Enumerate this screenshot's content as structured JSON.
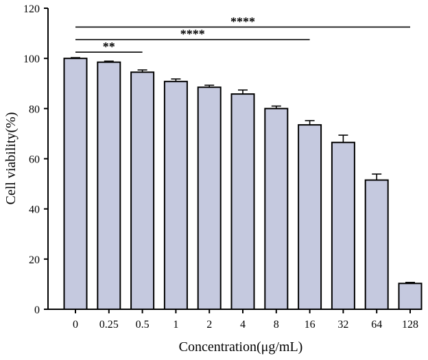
{
  "chart_data": {
    "type": "bar",
    "xlabel": "Concentration(μg/mL)",
    "ylabel": "Cell viability(%)",
    "ylim": [
      0,
      120
    ],
    "yticks": [
      0,
      20,
      40,
      60,
      80,
      100,
      120
    ],
    "categories": [
      "0",
      "0.25",
      "0.5",
      "1",
      "2",
      "4",
      "8",
      "16",
      "32",
      "64",
      "128"
    ],
    "values": [
      100.0,
      98.5,
      94.5,
      90.8,
      88.5,
      85.8,
      80.0,
      73.5,
      66.5,
      51.5,
      10.3
    ],
    "errors": [
      0.3,
      0.4,
      0.9,
      1.0,
      0.8,
      1.6,
      1.0,
      1.7,
      2.9,
      2.4,
      0.4
    ],
    "bar_color": "#c5c9df",
    "grid": false,
    "significance": [
      {
        "from": "0",
        "to": "0.5",
        "label": "**",
        "level": 102.5
      },
      {
        "from": "0",
        "to": "16",
        "label": "****",
        "level": 107.5
      },
      {
        "from": "0",
        "to": "128",
        "label": "****",
        "level": 112.5
      }
    ]
  }
}
